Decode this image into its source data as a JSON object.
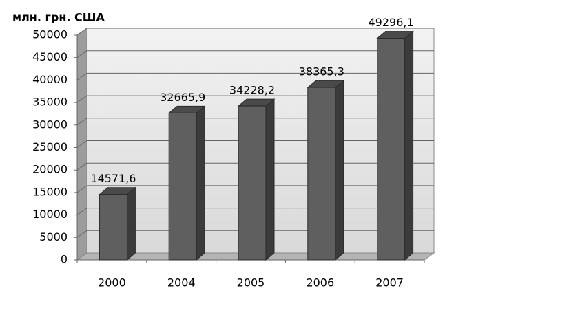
{
  "chart_data": {
    "type": "bar3d",
    "y_axis_label": "млн. грн. США",
    "categories": [
      "2000",
      "2004",
      "2005",
      "2006",
      "2007"
    ],
    "values": [
      14571.6,
      32665.9,
      34228.2,
      38365.3,
      49296.1
    ],
    "value_labels": [
      "14571,6",
      "32665,9",
      "34228,2",
      "38365,3",
      "49296,1"
    ],
    "color": "#5f5f5f",
    "ylim": [
      0,
      50000
    ],
    "yticks": [
      0,
      5000,
      10000,
      15000,
      20000,
      25000,
      30000,
      35000,
      40000,
      45000,
      50000
    ],
    "grid": true
  }
}
